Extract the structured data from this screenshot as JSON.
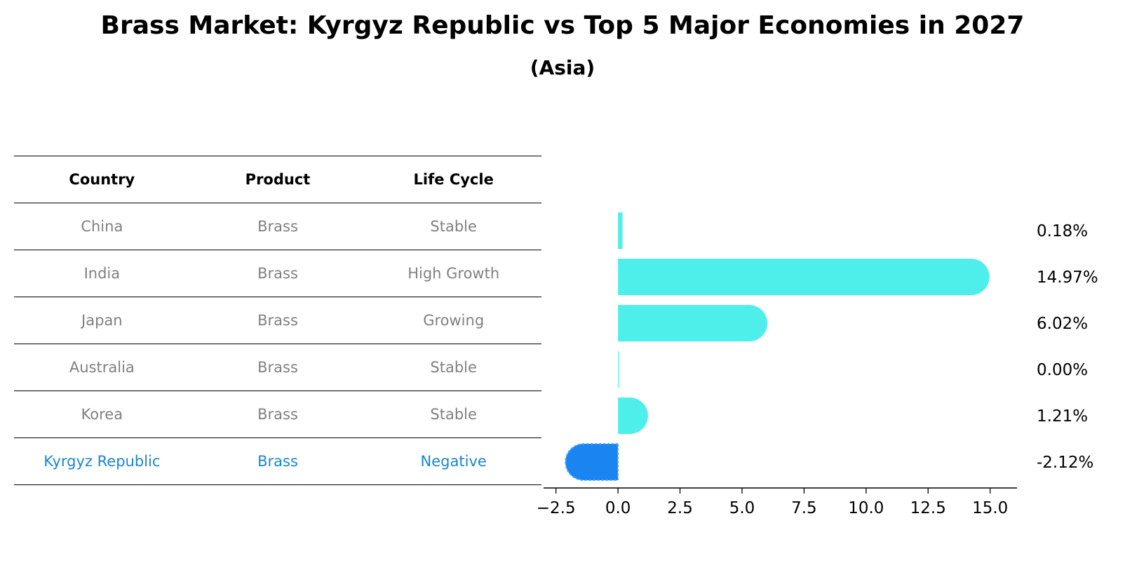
{
  "title": "Brass Market: Kyrgyz Republic vs Top 5 Major Economies in 2027",
  "subtitle": "(Asia)",
  "table": {
    "headers": [
      "Country",
      "Product",
      "Life Cycle"
    ],
    "rows": [
      [
        "China",
        "Brass",
        "Stable"
      ],
      [
        "India",
        "Brass",
        "High Growth"
      ],
      [
        "Japan",
        "Brass",
        "Growing"
      ],
      [
        "Australia",
        "Brass",
        "Stable"
      ],
      [
        "Korea",
        "Brass",
        "Stable"
      ],
      [
        "Kyrgyz Republic",
        "Brass",
        "Negative"
      ]
    ],
    "highlight_row": 5
  },
  "colors": {
    "bar_positive": "#4eeeea",
    "bar_highlight": "#1a85f0",
    "highlight_text": "#1a85d6",
    "body_text": "#808080"
  },
  "chart_data": {
    "type": "bar",
    "orientation": "horizontal",
    "categories": [
      "China",
      "India",
      "Japan",
      "Australia",
      "Korea",
      "Kyrgyz Republic"
    ],
    "values": [
      0.18,
      14.97,
      6.02,
      0.0,
      1.21,
      -2.12
    ],
    "value_labels": [
      "0.18%",
      "14.97%",
      "6.02%",
      "0.00%",
      "1.21%",
      "-2.12%"
    ],
    "xlim": [
      -3.0,
      15.8
    ],
    "xticks": [
      -2.5,
      0.0,
      2.5,
      5.0,
      7.5,
      10.0,
      12.5,
      15.0
    ],
    "xtick_labels": [
      "−2.5",
      "0.0",
      "2.5",
      "5.0",
      "7.5",
      "10.0",
      "12.5",
      "15.0"
    ],
    "highlight_index": 5,
    "grid": false,
    "legend": "none"
  }
}
